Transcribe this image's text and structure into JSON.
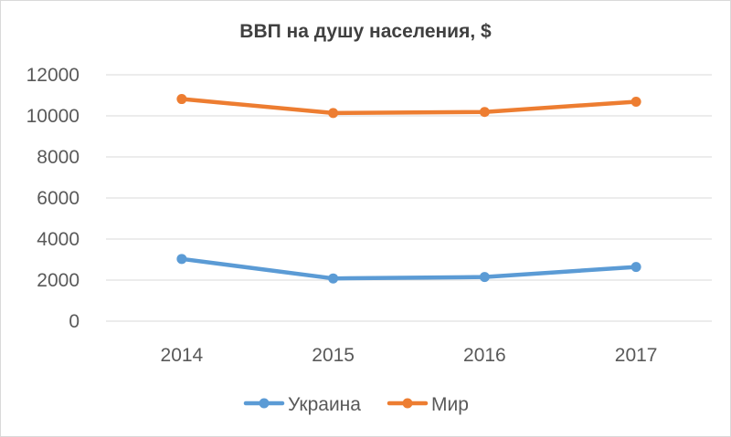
{
  "chart_data": {
    "type": "line",
    "title": "ВВП на душу населения, $",
    "categories": [
      "2014",
      "2015",
      "2016",
      "2017"
    ],
    "series": [
      {
        "name": "Украина",
        "color": "#5b9bd5",
        "values": [
          3030,
          2080,
          2150,
          2640
        ]
      },
      {
        "name": "Мир",
        "color": "#ed7d31",
        "values": [
          10820,
          10140,
          10190,
          10690
        ]
      }
    ],
    "yticks": [
      "0",
      "2000",
      "4000",
      "6000",
      "8000",
      "10000",
      "12000"
    ],
    "ylim": [
      0,
      12000
    ],
    "grid": true,
    "legend": "bottom"
  }
}
